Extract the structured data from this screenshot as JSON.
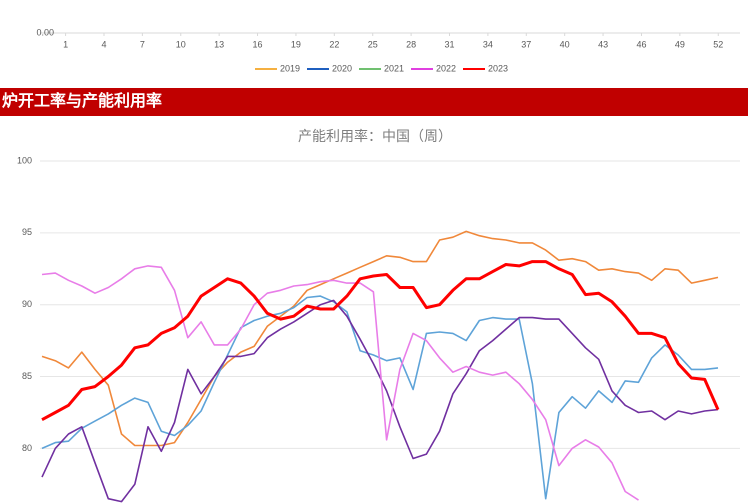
{
  "chart_data": [
    {
      "type": "line",
      "xticks": [
        1,
        4,
        7,
        10,
        13,
        16,
        19,
        22,
        25,
        28,
        31,
        34,
        37,
        40,
        43,
        46,
        49,
        52
      ],
      "xlim": [
        -1,
        53.7
      ],
      "yticks": [
        {
          "value": 0,
          "label": "0.00"
        }
      ],
      "series": [
        {
          "name": "2019",
          "color": "#f5b041"
        },
        {
          "name": "2020",
          "color": "#1f5fbf"
        },
        {
          "name": "2021",
          "color": "#70c070"
        },
        {
          "name": "2022",
          "color": "#e040e0"
        },
        {
          "name": "2023",
          "color": "#ff0000"
        }
      ]
    },
    {
      "type": "line",
      "title": "产能利用率：中国（周）",
      "ylim": [
        76.2,
        100
      ],
      "yticks": [
        80,
        85,
        90,
        95,
        100
      ],
      "grid": true,
      "series": [
        {
          "color": "#f0883a",
          "values": [
            86.4,
            86.1,
            85.6,
            86.7,
            85.5,
            84.4,
            81,
            80.2,
            80.2,
            80.2,
            80.4,
            81.8,
            83.4,
            85,
            86,
            86.7,
            87.1,
            88.5,
            89.2,
            89.9,
            91,
            91.4,
            91.8,
            92.2,
            92.6,
            93,
            93.4,
            93.3,
            93,
            93,
            94.5,
            94.7,
            95.1,
            94.8,
            94.6,
            94.5,
            94.3,
            94.3,
            93.8,
            93.1,
            93.2,
            93,
            92.4,
            92.5,
            92.3,
            92.2,
            91.7,
            92.5,
            92.4,
            91.5,
            91.7,
            91.9
          ]
        },
        {
          "color": "#5ea3d8",
          "values": [
            80,
            80.4,
            80.5,
            81.4,
            81.9,
            82.4,
            83,
            83.5,
            83.2,
            81.2,
            80.9,
            81.6,
            82.6,
            84.6,
            86.5,
            88.4,
            88.9,
            89.2,
            89.4,
            89.8,
            90.5,
            90.6,
            90.2,
            89.5,
            86.8,
            86.5,
            86.1,
            86.3,
            84.1,
            88,
            88.1,
            88,
            87.5,
            88.9,
            89.1,
            89,
            89,
            84.5,
            76.5,
            82.5,
            83.6,
            82.8,
            84,
            83.2,
            84.7,
            84.6,
            86.3,
            87.2,
            86.5,
            85.5,
            85.5,
            85.6
          ]
        },
        {
          "color": "#7030a0",
          "values": [
            78,
            80,
            81,
            81.5,
            79,
            76.5,
            76.3,
            77.5,
            81.5,
            79.8,
            81.8,
            85.5,
            83.8,
            85,
            86.4,
            86.4,
            86.6,
            87.7,
            88.3,
            88.8,
            89.4,
            90,
            90.3,
            89.2,
            87.6,
            85.9,
            84,
            81.5,
            79.3,
            79.6,
            81.2,
            83.8,
            85.2,
            86.8,
            87.5,
            88.3,
            89.1,
            89.1,
            89,
            89,
            88,
            87,
            86.2,
            84,
            83,
            82.5,
            82.6,
            82,
            82.6,
            82.4,
            82.6,
            82.7
          ]
        },
        {
          "color": "#e87de8",
          "values": [
            92.1,
            92.2,
            91.7,
            91.3,
            90.8,
            91.2,
            91.8,
            92.5,
            92.7,
            92.6,
            91,
            87.7,
            88.8,
            87.2,
            87.2,
            88.3,
            90,
            90.8,
            91,
            91.3,
            91.4,
            91.6,
            91.7,
            91.5,
            91.5,
            90.9,
            80.6,
            85.5,
            88,
            87.5,
            86.3,
            85.3,
            85.7,
            85.3,
            85.1,
            85.3,
            84.5,
            83.4,
            82,
            78.8,
            80,
            80.6,
            80.1,
            79,
            77,
            76.4,
            null,
            null,
            null,
            null,
            null,
            null
          ]
        },
        {
          "color": "#ff0000",
          "width": 3,
          "values": [
            82,
            82.5,
            83,
            84.1,
            84.3,
            85,
            85.8,
            87,
            87.2,
            88,
            88.4,
            89.2,
            90.6,
            91.2,
            91.8,
            91.5,
            90.6,
            89.4,
            89,
            89.2,
            89.9,
            89.7,
            89.7,
            90.6,
            91.8,
            92,
            92.1,
            91.2,
            91.2,
            89.8,
            90,
            91,
            91.8,
            91.8,
            92.3,
            92.8,
            92.7,
            93,
            93,
            92.5,
            92.1,
            90.7,
            90.8,
            90.2,
            89.2,
            88,
            88,
            87.7,
            85.9,
            84.9,
            84.8,
            82.7
          ]
        }
      ]
    }
  ],
  "banner": {
    "title": "炉开工率与产能利用率"
  }
}
